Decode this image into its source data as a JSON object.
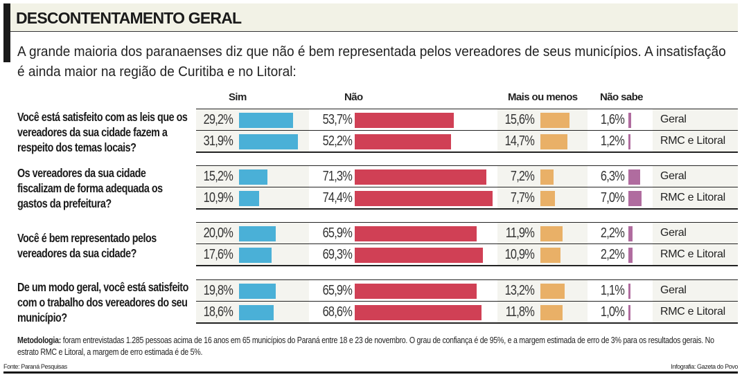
{
  "title": "DESCONTENTAMENTO GERAL",
  "subtitle": "A grande maioria dos paranaenses diz que não é bem representada pelos vereadores de seus municípios. A insatisfação é ainda maior na região de Curitiba e no Litoral:",
  "chart_data": {
    "type": "bar",
    "orientation": "horizontal",
    "unit": "%",
    "categories_header": [
      "Sim",
      "Não",
      "Mais ou menos",
      "Não sabe"
    ],
    "colors": {
      "Sim": "#4ab0d7",
      "Não": "#d04055",
      "Mais ou menos": "#e9b067",
      "Não sabe": "#b06c9f"
    },
    "groups": [
      {
        "question": "Você está satisfeito com as leis que os vereadores da sua cidade fazem a respeito dos temas locais?",
        "rows": [
          {
            "label": "Geral",
            "values": [
              29.2,
              53.7,
              15.6,
              1.6
            ],
            "texts": [
              "29,2%",
              "53,7%",
              "15,6%",
              "1,6%"
            ]
          },
          {
            "label": "RMC e Litoral",
            "values": [
              31.9,
              52.2,
              14.7,
              1.2
            ],
            "texts": [
              "31,9%",
              "52,2%",
              "14,7%",
              "1,2%"
            ]
          }
        ]
      },
      {
        "question": "Os vereadores da sua cidade fiscalizam de forma adequada os gastos da prefeitura?",
        "rows": [
          {
            "label": "Geral",
            "values": [
              15.2,
              71.3,
              7.2,
              6.3
            ],
            "texts": [
              "15,2%",
              "71,3%",
              "7,2%",
              "6,3%"
            ]
          },
          {
            "label": "RMC e Litoral",
            "values": [
              10.9,
              74.4,
              7.7,
              7.0
            ],
            "texts": [
              "10,9%",
              "74,4%",
              "7,7%",
              "7,0%"
            ]
          }
        ]
      },
      {
        "question": "Você é bem representado pelos vereadores da sua cidade?",
        "rows": [
          {
            "label": "Geral",
            "values": [
              20.0,
              65.9,
              11.9,
              2.2
            ],
            "texts": [
              "20,0%",
              "65,9%",
              "11,9%",
              "2,2%"
            ]
          },
          {
            "label": "RMC e Litoral",
            "values": [
              17.6,
              69.3,
              10.9,
              2.2
            ],
            "texts": [
              "17,6%",
              "69,3%",
              "10,9%",
              "2,2%"
            ]
          }
        ]
      },
      {
        "question": "De um modo geral, você está satisfeito com o trabalho dos vereadores do seu município?",
        "rows": [
          {
            "label": "Geral",
            "values": [
              19.8,
              65.9,
              13.2,
              1.1
            ],
            "texts": [
              "19,8%",
              "65,9%",
              "13,2%",
              "1,1%"
            ]
          },
          {
            "label": "RMC e Litoral",
            "values": [
              18.6,
              68.6,
              11.8,
              1.0
            ],
            "texts": [
              "18,6%",
              "68,6%",
              "11,8%",
              "1,0%"
            ]
          }
        ]
      }
    ]
  },
  "methodology": {
    "label": "Metodologia:",
    "text": " foram entrevistadas 1.285 pessoas acima de 16 anos em 65 municípios do Paraná entre 18 e 23 de novembro. O grau de confiança é de 95%, e a margem estimada de erro de 3% para os resultados gerais. No estrato RMC e Litoral, a margem de erro estimada é de 5%."
  },
  "source": "Fonte: Paraná Pesquisas",
  "credit": "Infografia: Gazeta do Povo"
}
